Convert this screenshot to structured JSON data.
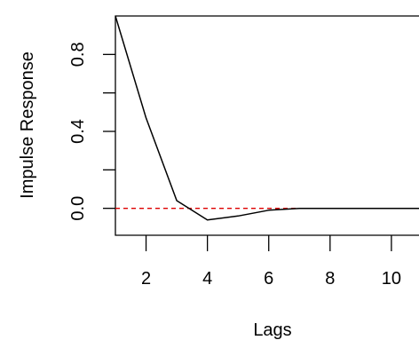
{
  "chart_data": {
    "type": "line",
    "title": "",
    "xlabel": "Lags",
    "ylabel": "Impulse Response",
    "xlim": [
      1,
      10.9
    ],
    "ylim": [
      -0.14,
      1.0
    ],
    "x_ticks": [
      2,
      4,
      6,
      8,
      10
    ],
    "x_tick_labels": [
      "2",
      "4",
      "6",
      "8",
      "10"
    ],
    "y_ticks": [
      0.0,
      0.4,
      0.8
    ],
    "y_tick_labels": [
      "0.0",
      "0.4",
      "0.8"
    ],
    "y_minor_ticks": [
      0.2,
      0.6
    ],
    "grid": false,
    "series": [
      {
        "color": "#000000",
        "x": [
          1,
          2,
          3,
          4,
          5,
          6,
          7,
          8,
          9,
          10,
          11
        ],
        "values": [
          1.0,
          0.47,
          0.04,
          -0.06,
          -0.04,
          -0.01,
          0.0,
          0.0,
          0.0,
          0.0,
          0.0
        ]
      }
    ],
    "reference_line": {
      "y": 0.0,
      "color": "#dd0000",
      "style": "dashed"
    }
  }
}
